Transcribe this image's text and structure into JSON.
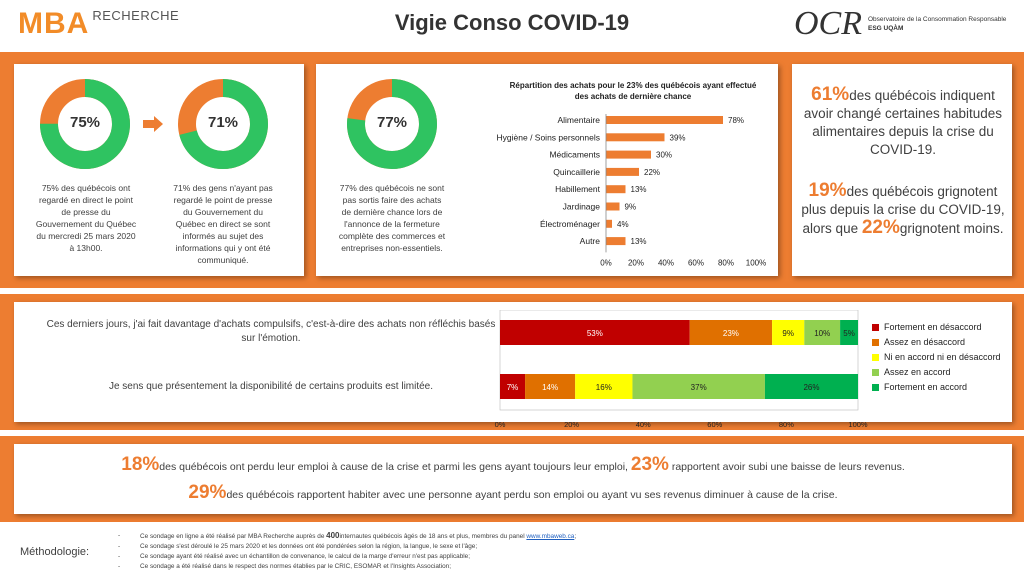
{
  "header": {
    "logo_main": "MBA",
    "logo_sub": "RECHERCHE",
    "title": "Vigie Conso COVID-19",
    "ocr_logo": "OCR",
    "ocr_sub1": "Observatoire de la Consommation Responsable",
    "ocr_sub2": "ESG UQÀM"
  },
  "donuts": [
    {
      "label": "75%",
      "value": 75,
      "caption": "75% des québécois ont regardé en direct le point de presse du Gouvernement du Québec du mercredi 25 mars 2020 à 13h00."
    },
    {
      "label": "71%",
      "value": 71,
      "caption": "71% des gens n'ayant pas regardé le point de presse du Gouvernement du Québec en direct se sont informés au sujet des informations qui y ont été communiqué."
    },
    {
      "label": "77%",
      "value": 77,
      "caption": "77% des québécois ne sont pas sortis faire des achats de dernière chance lors de l'annonce de la fermeture complète des commerces et entreprises non-essentiels."
    }
  ],
  "colors": {
    "orange": "#ed7d31",
    "green": "#2fc361",
    "red": "#c00000",
    "darkorange": "#e07000",
    "yellow": "#ffff00",
    "lightgreen": "#92d050",
    "midgreen": "#00b050"
  },
  "bar_chart": {
    "title": "Répartition des achats pour le 23% des québécois ayant effectué des achats de dernière chance",
    "x_ticks": [
      "0%",
      "20%",
      "40%",
      "60%",
      "80%",
      "100%"
    ]
  },
  "chart_data": [
    {
      "type": "bar",
      "orientation": "horizontal",
      "title": "Répartition des achats pour le 23% des québécois ayant effectué des achats de dernière chance",
      "categories": [
        "Alimentaire",
        "Hygiène / Soins personnels",
        "Médicaments",
        "Quincaillerie",
        "Habillement",
        "Jardinage",
        "Électroménager",
        "Autre"
      ],
      "values": [
        78,
        39,
        30,
        22,
        13,
        9,
        4,
        13
      ],
      "data_labels": [
        "78%",
        "39%",
        "30%",
        "22%",
        "13%",
        "9%",
        "4%",
        "13%"
      ],
      "xlim": [
        0,
        100
      ],
      "grid": false
    },
    {
      "type": "bar",
      "orientation": "horizontal",
      "stacked": true,
      "categories": [
        "Ces derniers jours, j'ai fait davantage d'achats compulsifs, c'est-à-dire des achats non réfléchis basés sur l'émotion.",
        "Je sens que présentement la disponibilité de certains produits est limitée."
      ],
      "series": [
        {
          "name": "Fortement en désaccord",
          "values": [
            53,
            7
          ],
          "labels": [
            "53%",
            "7%"
          ]
        },
        {
          "name": "Assez en désaccord",
          "values": [
            23,
            14
          ],
          "labels": [
            "23%",
            "14%"
          ]
        },
        {
          "name": "Ni en accord ni en désaccord",
          "values": [
            9,
            16
          ],
          "labels": [
            "9%",
            "16%"
          ]
        },
        {
          "name": "Assez en accord",
          "values": [
            10,
            37
          ],
          "labels": [
            "10%",
            "37%"
          ]
        },
        {
          "name": "Fortement en accord",
          "values": [
            5,
            26
          ],
          "labels": [
            "5%",
            "26%"
          ]
        }
      ],
      "x_ticks": [
        "0%",
        "20%",
        "40%",
        "60%",
        "80%",
        "100%"
      ],
      "xlim": [
        0,
        100
      ],
      "legend_position": "right"
    }
  ],
  "right_stats": {
    "s1_pct": "61%",
    "s1_text": "des québécois indiquent avoir changé certaines habitudes alimentaires depuis la crise du COVID-19.",
    "s2_pct": "19%",
    "s2_text": "des québécois grignotent plus depuis la crise du COVID-19, alors que",
    "s2_pct2": "22%",
    "s2_text2": "grignotent moins."
  },
  "bottom": {
    "l1_pct": "18%",
    "l1_text": "des québécois ont perdu leur emploi à cause de la crise et parmi les gens ayant toujours leur emploi,",
    "l1_pct2": "23%",
    "l1_text2": "rapportent avoir subi une baisse de leurs revenus.",
    "l2_pct": "29%",
    "l2_text": "des québécois rapportent habiter avec une personne ayant perdu son emploi ou ayant vu ses revenus diminuer à cause de la crise."
  },
  "methodology": {
    "label": "Méthodologie:",
    "dash": "-",
    "l1_a": "Ce sondage en ligne a été réalisé par MBA Recherche auprès de ",
    "l1_b": "400",
    "l1_c": "internautes québécois âgés de 18 ans et plus, membres du panel ",
    "l1_link": "www.mbaweb.ca",
    "l1_d": ";",
    "l2": "Ce sondage s'est déroulé le 25 mars 2020 et les données ont été pondérées selon la région, la langue, le sexe et l'âge;",
    "l3": "Ce sondage ayant été réalisé avec un échantillon de convenance, le calcul de la marge d'erreur n'est pas applicable;",
    "l4": "Ce sondage a été réalisé dans le respect des normes établies par le CRIC, ESOMAR et l'Insights Association;"
  }
}
